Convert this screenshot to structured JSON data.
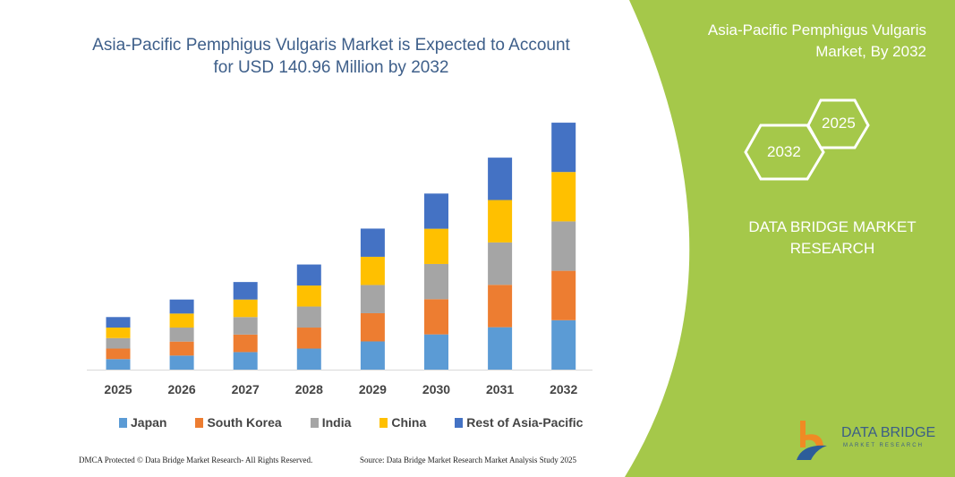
{
  "header": {
    "title": "Asia-Pacific Pemphigus Vulgaris Market is Expected to Account for USD 140.96 Million by 2032"
  },
  "side_panel": {
    "title": "Asia-Pacific Pemphigus Vulgaris Market, By 2032",
    "hex_years": [
      "2025",
      "2032"
    ],
    "brand": "DATA BRIDGE MARKET RESEARCH",
    "color": "#a5c84a"
  },
  "footer": {
    "copyright": "DMCA Protected © Data Bridge Market Research- All Rights Reserved.",
    "source": "Source: Data Bridge Market Research Market Analysis Study 2025"
  },
  "logo": {
    "name": "DATA BRIDGE",
    "tagline": "MARKET RESEARCH"
  },
  "chart_data": {
    "type": "bar",
    "stacked": true,
    "title": "Asia-Pacific Pemphigus Vulgaris Market is Expected to Account for USD 140.96 Million by 2032",
    "categories": [
      "2025",
      "2026",
      "2027",
      "2028",
      "2029",
      "2030",
      "2031",
      "2032"
    ],
    "series": [
      {
        "name": "Japan",
        "color": "#5b9bd5",
        "values": [
          6,
          8,
          10,
          12,
          16.1,
          20.1,
          24.2,
          28.2
        ]
      },
      {
        "name": "South Korea",
        "color": "#ed7d31",
        "values": [
          6,
          8,
          10,
          12,
          16.1,
          20.1,
          24.2,
          28.2
        ]
      },
      {
        "name": "India",
        "color": "#a5a5a5",
        "values": [
          6,
          8,
          10,
          12,
          16.1,
          20.1,
          24.2,
          28.2
        ]
      },
      {
        "name": "China",
        "color": "#ffc000",
        "values": [
          6,
          8,
          10,
          12,
          16.1,
          20.1,
          24.2,
          28.2
        ]
      },
      {
        "name": "Rest of Asia-Pacific",
        "color": "#4472c4",
        "values": [
          6,
          8,
          10,
          12,
          16.1,
          20.1,
          24.2,
          28.16
        ]
      }
    ],
    "ylim": [
      0,
      141
    ],
    "grid": false,
    "legend": "bottom"
  }
}
